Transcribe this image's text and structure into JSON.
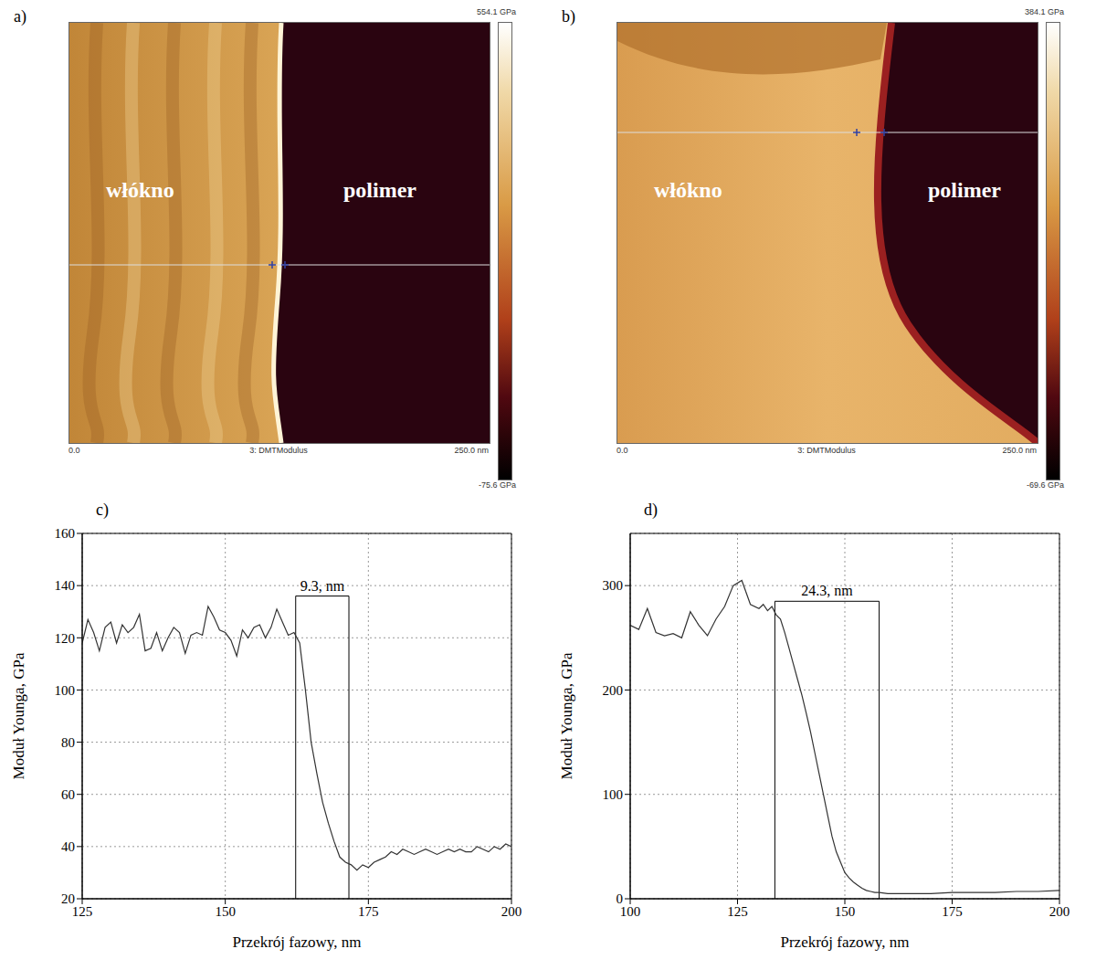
{
  "images": [
    {
      "label": "a)",
      "left_text": "włókno",
      "right_text": "polimer",
      "colorbar_max": "554.1 GPa",
      "colorbar_min": "-75.6 GPa",
      "scale_start": "0.0",
      "channel": "3: DMTModulus",
      "scale_end": "250.0 nm"
    },
    {
      "label": "b)",
      "left_text": "włókno",
      "right_text": "polimer",
      "colorbar_max": "384.1 GPa",
      "colorbar_min": "-69.6 GPa",
      "scale_start": "0.0",
      "channel": "3: DMTModulus",
      "scale_end": "250.0 nm"
    }
  ],
  "chart_data": [
    {
      "type": "line",
      "title": "c)",
      "x_label": "Przekrój fazowy, nm",
      "y_label": "Moduł Younga, GPa",
      "x": [
        125,
        126,
        127,
        128,
        129,
        130,
        131,
        132,
        133,
        134,
        135,
        136,
        137,
        138,
        139,
        140,
        141,
        142,
        143,
        144,
        145,
        146,
        147,
        148,
        149,
        150,
        151,
        152,
        153,
        154,
        155,
        156,
        157,
        158,
        159,
        160,
        161,
        162,
        163,
        164,
        165,
        166,
        167,
        168,
        169,
        170,
        171,
        172,
        173,
        174,
        175,
        176,
        177,
        178,
        179,
        180,
        181,
        182,
        183,
        184,
        185,
        186,
        187,
        188,
        189,
        190,
        191,
        192,
        193,
        194,
        195,
        196,
        197,
        198,
        199,
        200
      ],
      "values": [
        118,
        127,
        122,
        115,
        124,
        126,
        118,
        125,
        122,
        124,
        129,
        115,
        116,
        122,
        115,
        120,
        124,
        122,
        114,
        121,
        122,
        121,
        132,
        128,
        123,
        122,
        119,
        113,
        123,
        120,
        124,
        125,
        120,
        124,
        131,
        126,
        121,
        122,
        118,
        100,
        80,
        68,
        57,
        49,
        42,
        36,
        34,
        33,
        31,
        33,
        32,
        34,
        35,
        36,
        38,
        37,
        39,
        38,
        37,
        38,
        39,
        38,
        37,
        38,
        39,
        38,
        39,
        38,
        38,
        40,
        39,
        38,
        40,
        39,
        41,
        40
      ],
      "color": "#333333",
      "xlim": [
        125,
        200
      ],
      "ylim": [
        20,
        160
      ],
      "xticks": [
        125,
        150,
        175,
        200
      ],
      "yticks": [
        20,
        40,
        60,
        80,
        100,
        120,
        140,
        160
      ],
      "grid": true,
      "annotation": {
        "text": "9.3, nm",
        "x_start": 162.3,
        "x_end": 171.6,
        "y": 136
      }
    },
    {
      "type": "line",
      "title": "d)",
      "x_label": "Przekrój fazowy, nm",
      "y_label": "Moduł Younga, GPa",
      "x": [
        100,
        102,
        104,
        106,
        108,
        110,
        112,
        114,
        116,
        118,
        120,
        122,
        124,
        126,
        128,
        130,
        131,
        132,
        133,
        134,
        135,
        136,
        137,
        138,
        139,
        140,
        141,
        142,
        143,
        144,
        145,
        146,
        147,
        148,
        149,
        150,
        151,
        152,
        153,
        154,
        155,
        156,
        157,
        158,
        160,
        165,
        170,
        175,
        180,
        185,
        190,
        195,
        200
      ],
      "values": [
        262,
        258,
        278,
        255,
        252,
        254,
        250,
        275,
        262,
        252,
        268,
        280,
        300,
        305,
        282,
        278,
        282,
        276,
        280,
        272,
        268,
        255,
        240,
        225,
        210,
        195,
        178,
        160,
        140,
        120,
        100,
        80,
        60,
        45,
        35,
        25,
        20,
        16,
        13,
        10,
        8,
        7,
        6,
        6,
        5,
        5,
        5,
        6,
        6,
        6,
        7,
        7,
        8
      ],
      "color": "#333333",
      "xlim": [
        100,
        200
      ],
      "ylim": [
        0,
        350
      ],
      "xticks": [
        100,
        125,
        150,
        175,
        200
      ],
      "yticks": [
        0,
        100,
        200,
        300
      ],
      "grid": true,
      "annotation": {
        "text": "24.3, nm",
        "x_start": 133.7,
        "x_end": 158.0,
        "y": 285
      }
    }
  ]
}
